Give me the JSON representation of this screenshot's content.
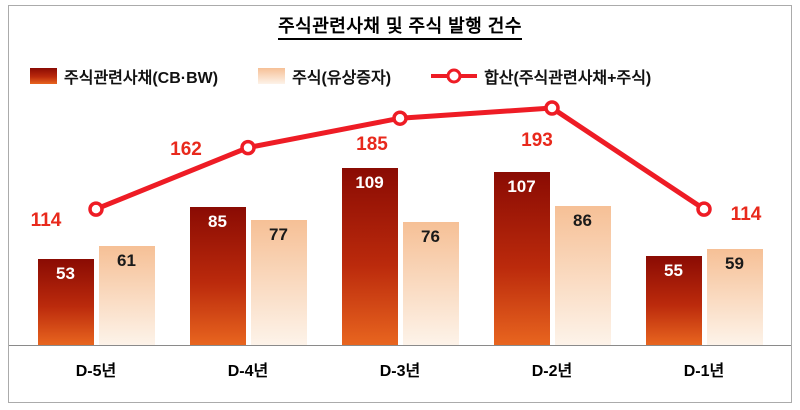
{
  "title": "주식관련사채 및 주식 발행 건수",
  "legend": {
    "items": [
      {
        "label": "주식관련사채(CB·BW)",
        "type": "bar-dark"
      },
      {
        "label": "주식(유상증자)",
        "type": "bar-light"
      },
      {
        "label": "합산(주식관련사채+주식)",
        "type": "line"
      }
    ]
  },
  "colors": {
    "bar_dark_top": "#8a0b03",
    "bar_dark_mid": "#bb2a0c",
    "bar_dark_bottom": "#e8651f",
    "bar_light_top": "#f6c096",
    "bar_light_bottom": "#fdf3e9",
    "line": "#ee1c25",
    "line_label": "#e8291c",
    "frame_border": "#ababab",
    "axis": "#8a8a8a"
  },
  "chart_data": {
    "type": "bar",
    "title": "주식관련사채 및 주식 발행 건수",
    "categories": [
      "D-5년",
      "D-4년",
      "D-3년",
      "D-2년",
      "D-1년"
    ],
    "series": [
      {
        "name": "주식관련사채(CB·BW)",
        "type": "bar",
        "values": [
          53,
          85,
          109,
          107,
          55
        ]
      },
      {
        "name": "주식(유상증자)",
        "type": "bar",
        "values": [
          61,
          77,
          76,
          86,
          59
        ]
      },
      {
        "name": "합산(주식관련사채+주식)",
        "type": "line",
        "values": [
          114,
          162,
          185,
          193,
          114
        ]
      }
    ],
    "xlabel": "",
    "ylabel": "",
    "grid": false,
    "legend_position": "top-left",
    "value_labels": true
  }
}
